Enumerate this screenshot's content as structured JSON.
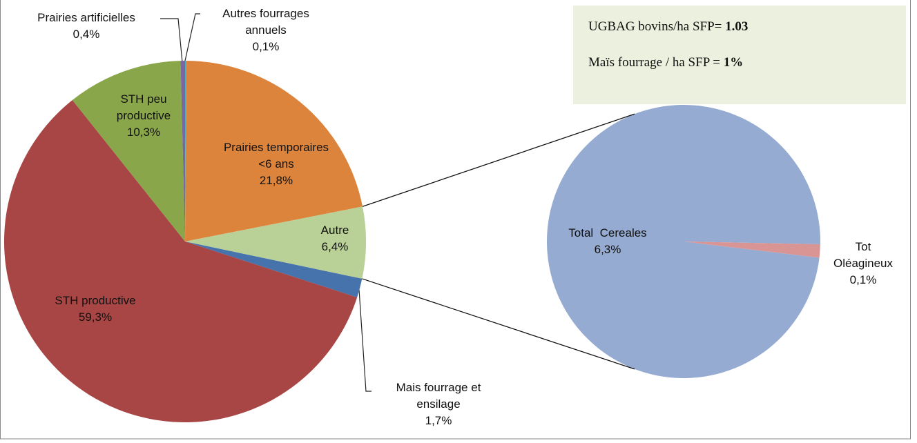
{
  "chart_data": [
    {
      "type": "pie",
      "categories": [
        "Autres fourrages annuels",
        "Prairies temporaires <6 ans",
        "Autre",
        "Mais fourrage et ensilage",
        "STH productive",
        "STH peu productive",
        "Prairies artificielles"
      ],
      "values": [
        0.1,
        21.8,
        6.4,
        1.7,
        59.3,
        10.3,
        0.4
      ],
      "value_labels": [
        "0,1%",
        "21,8%",
        "6,4%",
        "1,7%",
        "59,3%",
        "10,3%",
        "0,4%"
      ],
      "colors": [
        "#4bacc6",
        "#dd843c",
        "#b9d096",
        "#4673ab",
        "#a84545",
        "#8aa64b",
        "#7b67a0"
      ]
    },
    {
      "type": "pie",
      "categories": [
        "Total  Cereales",
        "Tot Oléagineux"
      ],
      "values": [
        6.3,
        0.1
      ],
      "value_labels": [
        "6,3%",
        "0,1%"
      ],
      "colors": [
        "#95abd1",
        "#d99594"
      ]
    }
  ],
  "annotation_box": [
    {
      "text": "UGBAG bovins/ha SFP= ",
      "value": "1.03"
    },
    {
      "text": "Maïs fourrage / ha SFP = ",
      "value": "1%"
    }
  ]
}
